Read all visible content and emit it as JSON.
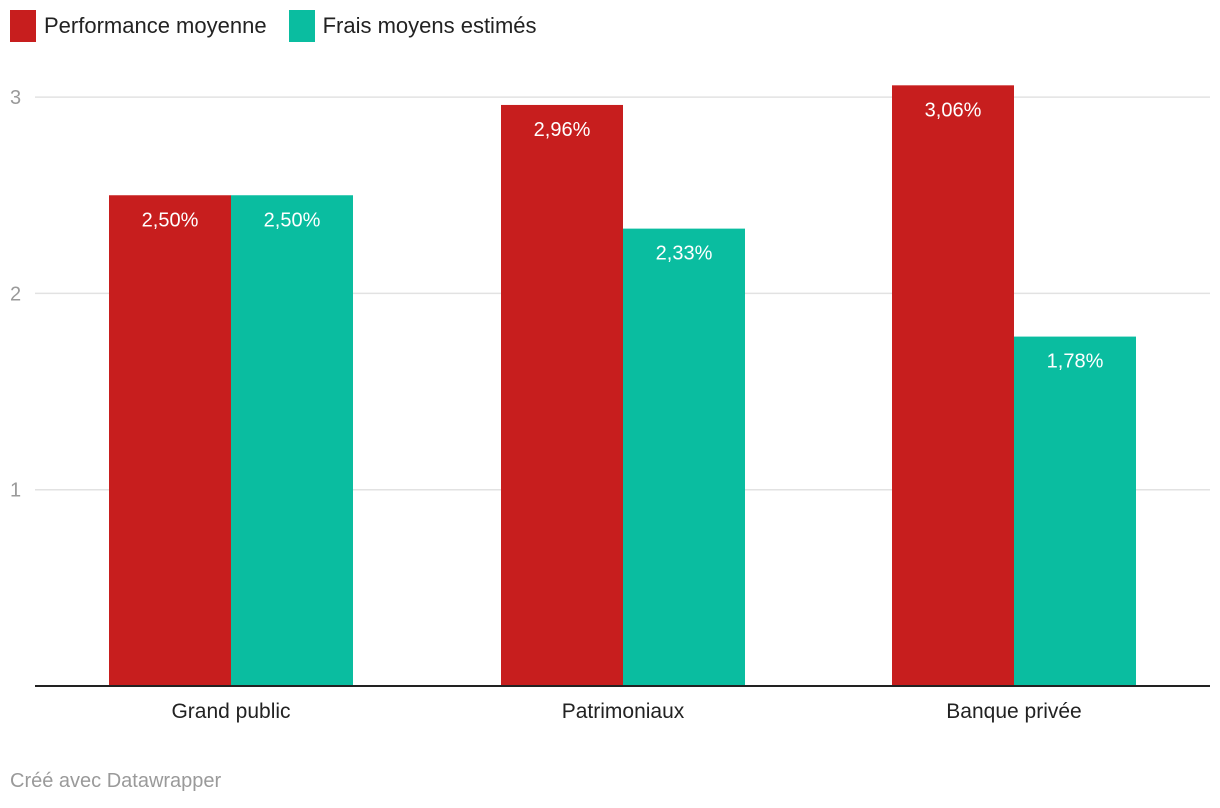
{
  "chart_data": {
    "type": "bar",
    "categories": [
      "Grand public",
      "Patrimoniaux",
      "Banque privée"
    ],
    "series": [
      {
        "name": "Performance moyenne",
        "color": "#c71e1e",
        "values": [
          2.5,
          2.96,
          3.06
        ],
        "labels": [
          "2,50%",
          "2,96%",
          "3,06%"
        ]
      },
      {
        "name": "Frais moyens estimés",
        "color": "#0abda0",
        "values": [
          2.5,
          2.33,
          1.78
        ],
        "labels": [
          "2,50%",
          "2,33%",
          "1,78%"
        ]
      }
    ],
    "y_ticks": [
      1,
      2,
      3
    ],
    "ylim": [
      0,
      3.1
    ],
    "grid": true,
    "legend_position": "top-left"
  },
  "credit": "Créé avec Datawrapper",
  "colors": {
    "grid": "#e2e2e2",
    "axis": "#222222",
    "tick_text": "#9a9a9a"
  }
}
